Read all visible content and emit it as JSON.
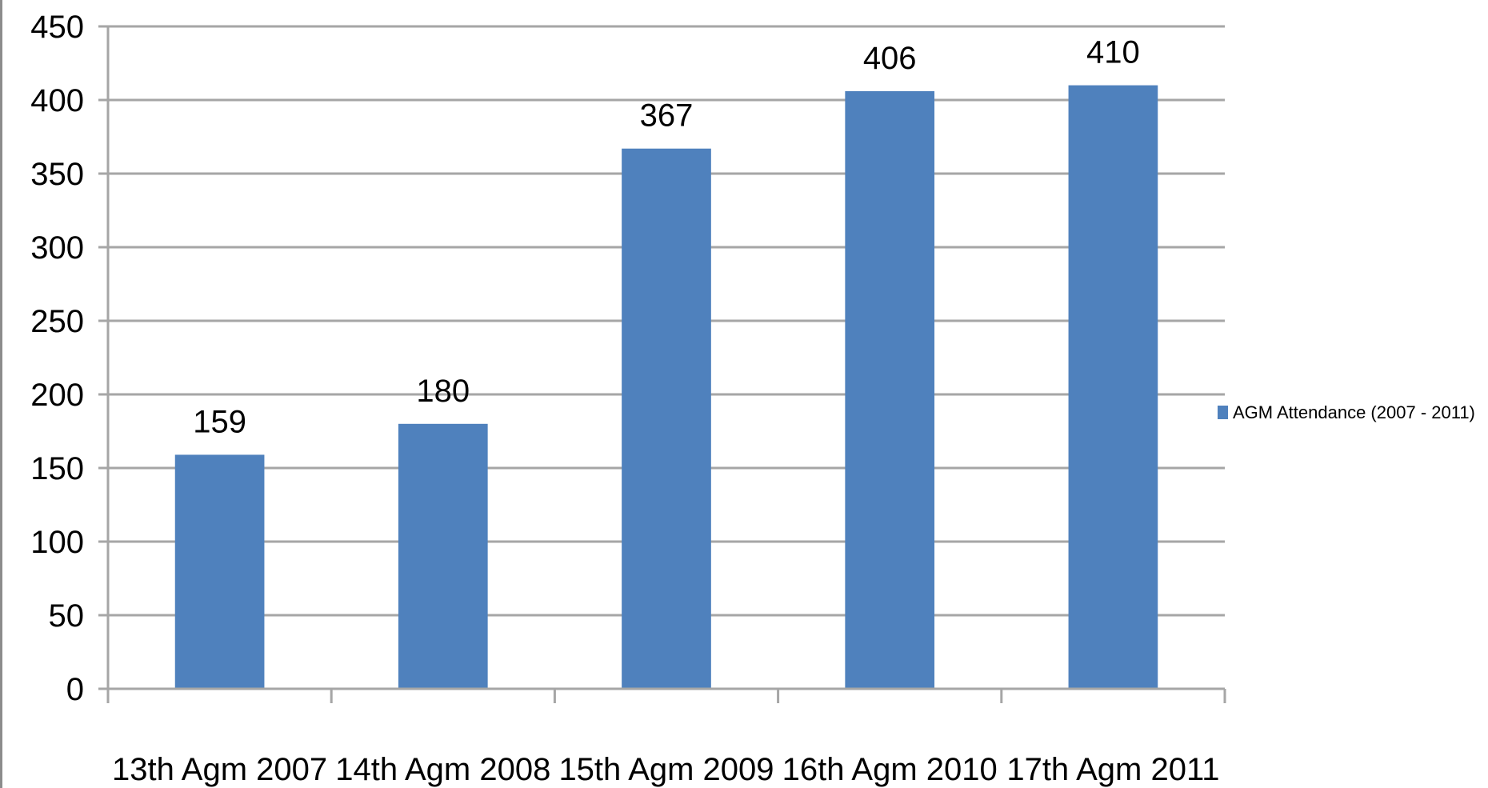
{
  "chart_data": {
    "type": "bar",
    "categories": [
      "13th Agm 2007",
      "14th Agm 2008",
      "15th Agm 2009",
      "16th Agm 2010",
      "17th Agm 2011"
    ],
    "series": [
      {
        "name": "AGM Attendance (2007 - 2011)",
        "values": [
          159,
          180,
          367,
          406,
          410
        ]
      }
    ],
    "ylim": [
      0,
      450
    ],
    "yticks": [
      0,
      50,
      100,
      150,
      200,
      250,
      300,
      350,
      400,
      450
    ],
    "grid": true,
    "legend": "right",
    "data_labels": true,
    "colors": {
      "bar": "#4F81BD",
      "grid": "#A6A6A6",
      "axis": "#A6A6A6"
    }
  }
}
